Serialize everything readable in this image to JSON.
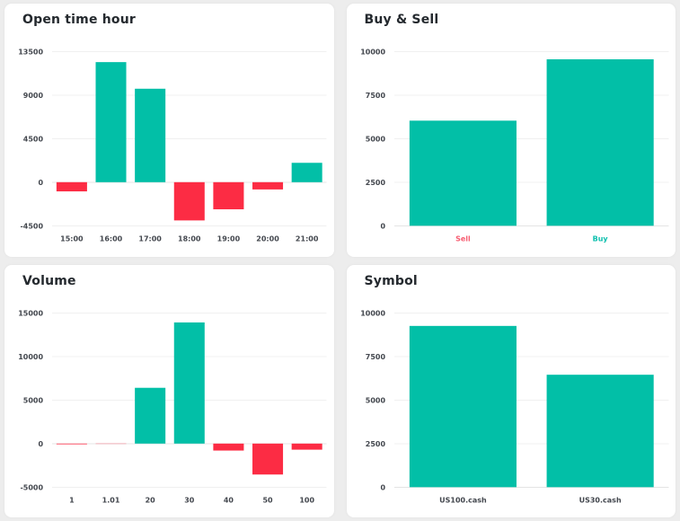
{
  "page": {
    "background": "#EDEDED",
    "card_background": "#FFFFFF"
  },
  "colors": {
    "positive_bar": "#02BFA7",
    "negative_bar": "#FC2C44",
    "title_text": "#24292E",
    "axis_text": "#43474E",
    "gridline": "#F0F0F0",
    "zero_line": "#E4E4E4",
    "sell_label": "#F75E72",
    "buy_label": "#0EC0AE"
  },
  "chart_data": [
    {
      "id": "open-time-hour",
      "type": "bar",
      "title": "Open time hour",
      "categories": [
        "15:00",
        "16:00",
        "17:00",
        "18:00",
        "19:00",
        "20:00",
        "21:00"
      ],
      "values": [
        -950,
        12400,
        9650,
        -3950,
        -2800,
        -750,
        2000
      ],
      "yticks": [
        13500,
        9000,
        4500,
        0,
        -4500
      ],
      "ylim": [
        -4500,
        13500
      ],
      "bar_color_rule": "sign",
      "grid": true,
      "legend": "none",
      "xlabel": "",
      "ylabel": ""
    },
    {
      "id": "buy-sell",
      "type": "bar",
      "title": "Buy & Sell",
      "categories": [
        "Sell",
        "Buy"
      ],
      "values": [
        6030,
        9550
      ],
      "yticks": [
        10000,
        7500,
        5000,
        2500,
        0
      ],
      "ylim": [
        0,
        10000
      ],
      "bar_color_rule": "positive",
      "category_label_colors": [
        "#F75E72",
        "#0EC0AE"
      ],
      "grid": true,
      "legend": "none",
      "xlabel": "",
      "ylabel": ""
    },
    {
      "id": "volume",
      "type": "bar",
      "title": "Volume",
      "categories": [
        "1",
        "1.01",
        "20",
        "30",
        "40",
        "50",
        "100"
      ],
      "values": [
        -80,
        -20,
        6400,
        13900,
        -800,
        -3550,
        -700
      ],
      "yticks": [
        15000,
        10000,
        5000,
        0,
        -5000
      ],
      "ylim": [
        -5000,
        15000
      ],
      "bar_color_rule": "sign",
      "grid": true,
      "legend": "none",
      "xlabel": "",
      "ylabel": ""
    },
    {
      "id": "symbol",
      "type": "bar",
      "title": "Symbol",
      "categories": [
        "US100.cash",
        "US30.cash"
      ],
      "values": [
        9250,
        6450
      ],
      "yticks": [
        10000,
        7500,
        5000,
        2500,
        0
      ],
      "ylim": [
        0,
        10000
      ],
      "bar_color_rule": "positive",
      "grid": true,
      "legend": "none",
      "xlabel": "",
      "ylabel": ""
    }
  ]
}
